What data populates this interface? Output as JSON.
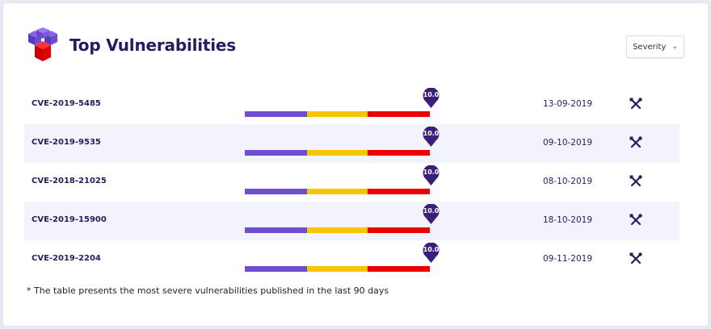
{
  "header": {
    "title": "Top Vulnerabilities",
    "logo_icon": "cubes-logo-icon"
  },
  "severity_select": {
    "label": "Severity",
    "icon": "chevron-down-icon"
  },
  "colors": {
    "brand": "#3b1e7c",
    "low": "#6e4ecf",
    "medium": "#f7c600",
    "high": "#ee0000",
    "row_alt": "#f3f3fb"
  },
  "vulnerabilities": [
    {
      "id": "CVE-2019-5485",
      "score": "10.0",
      "date": "13-09-2019"
    },
    {
      "id": "CVE-2019-9535",
      "score": "10.0",
      "date": "09-10-2019"
    },
    {
      "id": "CVE-2018-21025",
      "score": "10.0",
      "date": "08-10-2019"
    },
    {
      "id": "CVE-2019-15900",
      "score": "10.0",
      "date": "18-10-2019"
    },
    {
      "id": "CVE-2019-2204",
      "score": "10.0",
      "date": "09-11-2019"
    }
  ],
  "footnote": "* The table presents the most severe vulnerabilities published in the last 90 days"
}
